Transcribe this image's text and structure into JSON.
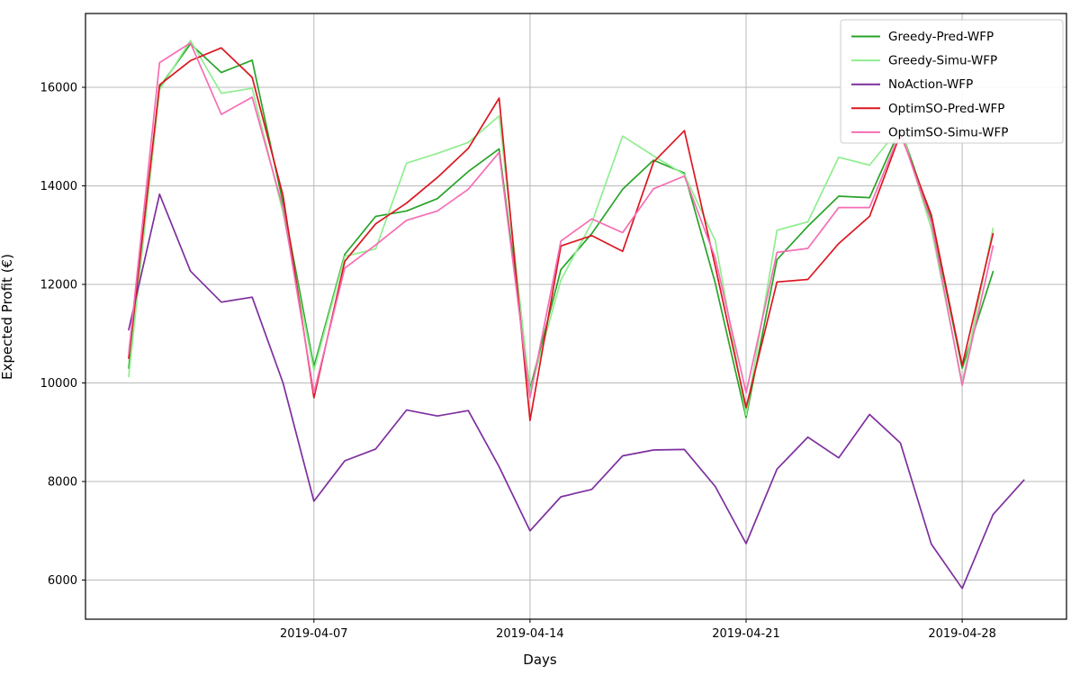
{
  "chart_data": {
    "type": "line",
    "title": "",
    "xlabel": "Days",
    "ylabel": "Expected Profit (€)",
    "x_start_date": "2019-04-01",
    "x_unit": "day of April 2019",
    "x_tick_days": [
      7,
      14,
      21,
      28
    ],
    "x_tick_labels": [
      "2019-04-07",
      "2019-04-14",
      "2019-04-21",
      "2019-04-28"
    ],
    "y_ticks": [
      6000,
      8000,
      10000,
      12000,
      14000,
      16000
    ],
    "y_tick_labels": [
      "6000",
      "8000",
      "10000",
      "12000",
      "14000",
      "16000"
    ],
    "xlim_days": [
      0.55,
      31.45
    ],
    "ylim": [
      5200,
      17500
    ],
    "grid": true,
    "legend_position": "upper right",
    "frame_color": "#000000",
    "grid_color": "#b8b8b8",
    "series": [
      {
        "name": "Greedy-Pred-WFP",
        "color": "#28a428",
        "start_day": 1,
        "values": [
          10300,
          16000,
          16880,
          16300,
          16550,
          13650,
          10330,
          12610,
          13380,
          13490,
          13740,
          14290,
          14750,
          9880,
          12300,
          13030,
          13930,
          14520,
          14260,
          12030,
          9300,
          12500,
          13180,
          13790,
          13760,
          15170,
          13350,
          10300,
          12260
        ]
      },
      {
        "name": "Greedy-Simu-WFP",
        "color": "#90ee90",
        "start_day": 1,
        "values": [
          10130,
          15950,
          16950,
          15880,
          15980,
          13450,
          10250,
          12570,
          12720,
          14460,
          14660,
          14880,
          15420,
          9820,
          12090,
          13250,
          15010,
          14610,
          14230,
          12890,
          9350,
          13100,
          13270,
          14580,
          14420,
          15200,
          13130,
          10000,
          13140
        ]
      },
      {
        "name": "NoAction-WFP",
        "color": "#7e2f9e",
        "start_day": 1,
        "values": [
          11080,
          13830,
          12270,
          11640,
          11740,
          10000,
          7600,
          8420,
          8660,
          9450,
          9330,
          9440,
          8300,
          7000,
          7690,
          7840,
          8520,
          8640,
          8650,
          7900,
          6740,
          8250,
          8900,
          8480,
          9360,
          8780,
          6730,
          5830,
          7330,
          8030
        ]
      },
      {
        "name": "OptimSO-Pred-WFP",
        "color": "#dc1620",
        "start_day": 1,
        "values": [
          10500,
          16050,
          16540,
          16800,
          16200,
          13800,
          9700,
          12470,
          13230,
          13650,
          14170,
          14760,
          15780,
          9240,
          12780,
          12990,
          12670,
          14480,
          15120,
          12370,
          9500,
          12050,
          12100,
          12830,
          13380,
          15060,
          13410,
          10350,
          13030
        ]
      },
      {
        "name": "OptimSO-Simu-WFP",
        "color": "#f56eb4",
        "start_day": 1,
        "values": [
          10600,
          16500,
          16900,
          15450,
          15800,
          13550,
          9800,
          12330,
          12800,
          13300,
          13490,
          13930,
          14680,
          9700,
          12880,
          13330,
          13050,
          13940,
          14200,
          12540,
          9800,
          12650,
          12730,
          13560,
          13560,
          15100,
          13260,
          9950,
          12780
        ]
      }
    ]
  }
}
